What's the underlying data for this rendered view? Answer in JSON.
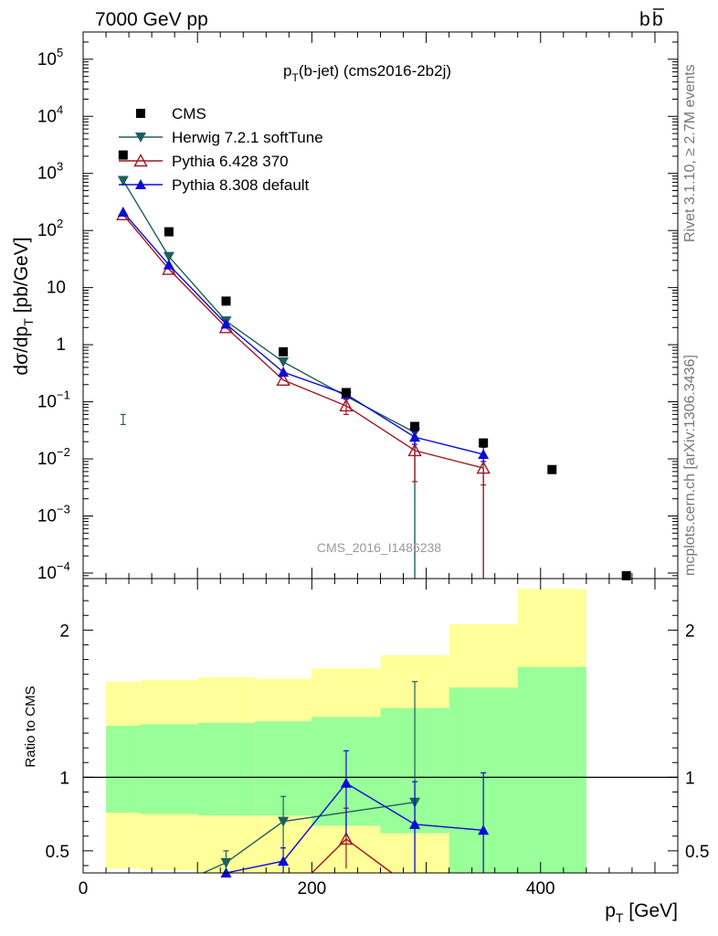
{
  "header": {
    "left": "7000 GeV pp",
    "right_main": "b",
    "right_bar": "b"
  },
  "side_text": {
    "rivet": "Rivet 3.1.10, ≥ 2.7M events",
    "mcplots": "mcplots.cern.ch [arXiv:1306.3436]"
  },
  "chart_data": {
    "type": "scatter",
    "title": "p_T(b-jet) (cms2016-2b2j)",
    "title_parts": {
      "p": "p",
      "sub": "T",
      "rest": "(b-jet) (cms2016-2b2j)"
    },
    "watermark": "CMS_2016_I1486238",
    "xlabel": "p_T [GeV]",
    "xlabel_parts": {
      "p": "p",
      "sub": "T",
      "rest": " [GeV]"
    },
    "ylabel": "dσ/dp_T [pb/GeV]",
    "ylabel_parts": {
      "pre": "dσ/dp",
      "sub": "T",
      "rest": " [pb/GeV]"
    },
    "ratio_ylabel": "Ratio to CMS",
    "xlim": [
      0,
      520
    ],
    "ylim_main": [
      8e-05,
      300000
    ],
    "ylim_ratio": [
      0.35,
      2.35
    ],
    "x_ticks": [
      0,
      200,
      400
    ],
    "main_ticks": [
      {
        "v": 100000,
        "label": "10",
        "exp": "5"
      },
      {
        "v": 10000,
        "label": "10",
        "exp": "4"
      },
      {
        "v": 1000,
        "label": "10",
        "exp": "3"
      },
      {
        "v": 100,
        "label": "10",
        "exp": "2"
      },
      {
        "v": 10,
        "label": "10",
        "exp": ""
      },
      {
        "v": 1,
        "label": "1",
        "exp": ""
      },
      {
        "v": 0.1,
        "label": "10",
        "exp": "−1"
      },
      {
        "v": 0.01,
        "label": "10",
        "exp": "−2"
      },
      {
        "v": 0.001,
        "label": "10",
        "exp": "−3"
      },
      {
        "v": 0.0001,
        "label": "10",
        "exp": "−4"
      }
    ],
    "ratio_ticks": [
      {
        "v": 0.5,
        "label": "0.5"
      },
      {
        "v": 1,
        "label": "1"
      },
      {
        "v": 2,
        "label": "2"
      }
    ],
    "legend": [
      {
        "name": "CMS",
        "color": "#000000",
        "marker": "square"
      },
      {
        "name": "Herwig 7.2.1 softTune",
        "color": "#1f5e60",
        "marker": "tri-down"
      },
      {
        "name": "Pythia 6.428 370",
        "color": "#a31621",
        "marker": "tri-up-open"
      },
      {
        "name": "Pythia 8.308 default",
        "color": "#0b0bd9",
        "marker": "tri-up"
      }
    ],
    "data": {
      "name": "CMS",
      "x": [
        35,
        75,
        125,
        175,
        230,
        290,
        350,
        410,
        475
      ],
      "y": [
        2100,
        95,
        5.8,
        0.75,
        0.145,
        0.037,
        0.019,
        0.0065,
        9e-05
      ]
    },
    "series": [
      {
        "name": "Herwig 7.2.1 softTune",
        "x": [
          35,
          75,
          125,
          175,
          230,
          290
        ],
        "y": [
          750,
          35,
          2.6,
          0.5,
          0.125,
          0.029
        ],
        "err": [
          [
            35,
            0.04,
            0.06
          ]
        ],
        "drop_to_floor_at": 290
      },
      {
        "name": "Pythia 6.428 370",
        "x": [
          35,
          75,
          125,
          175,
          230,
          290,
          350
        ],
        "y": [
          190,
          21,
          2.0,
          0.24,
          0.085,
          0.014,
          0.0069
        ],
        "err": [
          [
            230,
            0.06,
            0.11
          ],
          [
            290,
            0.004,
            0.022
          ],
          [
            350,
            0.0035,
            0.012
          ]
        ],
        "drop_to_floor_at": 350
      },
      {
        "name": "Pythia 8.308 default",
        "x": [
          35,
          75,
          125,
          175,
          230,
          290,
          350
        ],
        "y": [
          210,
          25,
          2.3,
          0.33,
          0.135,
          0.024,
          0.012
        ],
        "err": [
          [
            290,
            0.018,
            0.03
          ],
          [
            350,
            0.009,
            0.016
          ]
        ]
      }
    ],
    "ratio_bands": [
      {
        "x0": 20,
        "x1": 50,
        "yellow": [
          0.38,
          1.65
        ],
        "green": [
          0.76,
          1.35
        ]
      },
      {
        "x0": 50,
        "x1": 100,
        "yellow": [
          0.37,
          1.66
        ],
        "green": [
          0.75,
          1.36
        ]
      },
      {
        "x0": 100,
        "x1": 150,
        "yellow": [
          0.35,
          1.68
        ],
        "green": [
          0.74,
          1.37
        ]
      },
      {
        "x0": 150,
        "x1": 200,
        "yellow": [
          0.35,
          1.67
        ],
        "green": [
          0.74,
          1.38
        ]
      },
      {
        "x0": 200,
        "x1": 260,
        "yellow": [
          0.35,
          1.74
        ],
        "green": [
          0.67,
          1.41
        ]
      },
      {
        "x0": 260,
        "x1": 320,
        "yellow": [
          0.35,
          1.83
        ],
        "green": [
          0.62,
          1.47
        ]
      },
      {
        "x0": 320,
        "x1": 380,
        "yellow": [
          0.35,
          2.04
        ],
        "green": [
          0.35,
          1.61
        ]
      },
      {
        "x0": 380,
        "x1": 440,
        "yellow": [
          0.35,
          2.28
        ],
        "green": [
          0.35,
          1.75
        ]
      }
    ],
    "ratio_series": [
      {
        "name": "Herwig 7.2.1 softTune",
        "x": [
          125,
          175,
          290
        ],
        "y": [
          0.42,
          0.7,
          0.83
        ],
        "err": [
          [
            125,
            0.36,
            0.5
          ],
          [
            175,
            0.52,
            0.87
          ],
          [
            290,
            0.35,
            1.65
          ]
        ],
        "enter_from_x": 105
      },
      {
        "name": "Pythia 6.428 370",
        "x": [
          230
        ],
        "y": [
          0.58
        ],
        "err": [
          [
            230,
            0.38,
            0.79
          ]
        ],
        "enter_from_x": 200,
        "exit_to_x": 270
      },
      {
        "name": "Pythia 8.308 default",
        "x": [
          125,
          175,
          230,
          290,
          350
        ],
        "y": [
          0.35,
          0.43,
          0.96,
          0.68,
          0.64
        ],
        "err": [
          [
            175,
            0.35,
            0.52
          ],
          [
            230,
            0.6,
            1.18
          ],
          [
            290,
            0.35,
            0.97
          ],
          [
            350,
            0.35,
            1.03
          ]
        ]
      }
    ]
  }
}
